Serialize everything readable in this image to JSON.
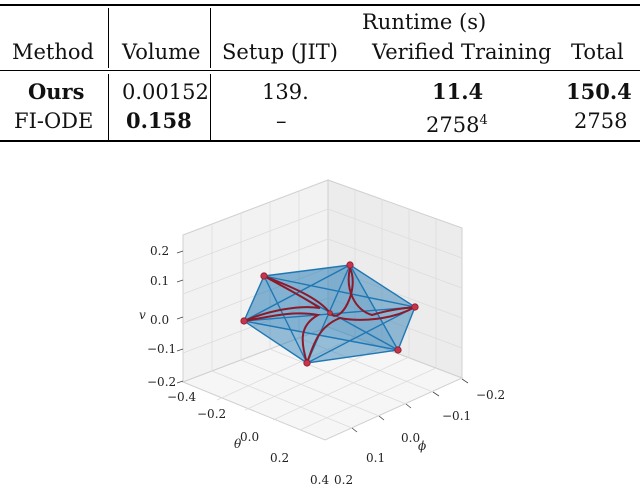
{
  "table": {
    "group_header": "Runtime (s)",
    "headers": {
      "method": "Method",
      "volume": "Volume",
      "setup": "Setup (JIT)",
      "verified_training": "Verified Training",
      "total": "Total"
    },
    "rows": [
      {
        "method": "Ours",
        "volume": "0.00152",
        "setup": "139.",
        "verified_training": "11.4",
        "total": "150.4",
        "bold": [
          "method",
          "verified_training",
          "total"
        ]
      },
      {
        "method": "FI-ODE",
        "volume": "0.158",
        "setup": "–",
        "verified_training": "2758",
        "verified_training_sup": "4",
        "total": "2758",
        "bold": [
          "volume"
        ]
      }
    ]
  },
  "plot": {
    "v_axis_label": "v",
    "theta_axis_label": "θ",
    "phi_axis_label": "ϕ",
    "v_ticks": [
      "0.2",
      "0.1",
      "0.0",
      "−0.1",
      "−0.2"
    ],
    "theta_ticks": [
      "−0.4",
      "−0.2",
      "0.0",
      "0.2",
      "0.4"
    ],
    "phi_ticks": [
      "−0.2",
      "−0.1",
      "0.0",
      "0.1",
      "0.2"
    ],
    "colors": {
      "fill": "#1f77b4",
      "edge": "#1f77b4",
      "curve": "#8b1a2b",
      "vertex": "#c8334d"
    }
  }
}
